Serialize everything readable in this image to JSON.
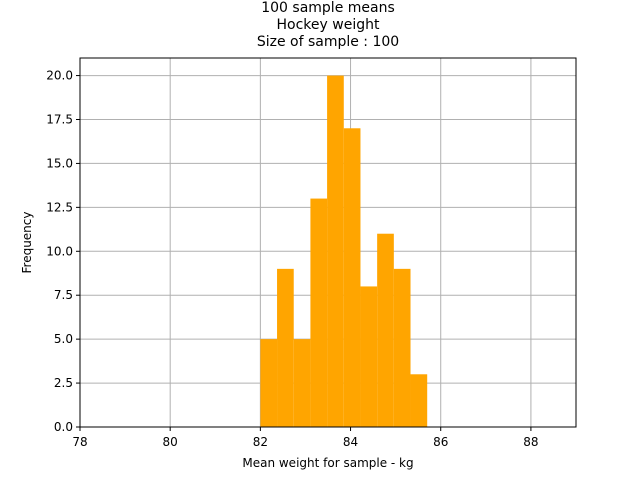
{
  "chart_data": {
    "type": "bar",
    "title_lines": [
      "100 sample means",
      "Hockey weight",
      "Size of sample : 100"
    ],
    "xlabel": "Mean weight for sample - kg",
    "ylabel": "Frequency",
    "xlim": [
      78,
      89
    ],
    "ylim": [
      0,
      21
    ],
    "xticks": [
      78,
      80,
      82,
      84,
      86,
      88
    ],
    "yticks": [
      0.0,
      2.5,
      5.0,
      7.5,
      10.0,
      12.5,
      15.0,
      17.5,
      20.0
    ],
    "xtick_labels": [
      "78",
      "80",
      "82",
      "84",
      "86",
      "88"
    ],
    "ytick_labels": [
      "0.0",
      "2.5",
      "5.0",
      "7.5",
      "10.0",
      "12.5",
      "15.0",
      "17.5",
      "20.0"
    ],
    "grid": true,
    "bar_color": "#ffa500",
    "bins": [
      {
        "x0": 82.0,
        "x1": 82.37,
        "count": 5
      },
      {
        "x0": 82.37,
        "x1": 82.74,
        "count": 9
      },
      {
        "x0": 82.74,
        "x1": 83.11,
        "count": 5
      },
      {
        "x0": 83.11,
        "x1": 83.48,
        "count": 13
      },
      {
        "x0": 83.48,
        "x1": 83.85,
        "count": 20
      },
      {
        "x0": 83.85,
        "x1": 84.22,
        "count": 17
      },
      {
        "x0": 84.22,
        "x1": 84.59,
        "count": 8
      },
      {
        "x0": 84.59,
        "x1": 84.96,
        "count": 11
      },
      {
        "x0": 84.96,
        "x1": 85.33,
        "count": 9
      },
      {
        "x0": 85.33,
        "x1": 85.7,
        "count": 3
      }
    ]
  }
}
